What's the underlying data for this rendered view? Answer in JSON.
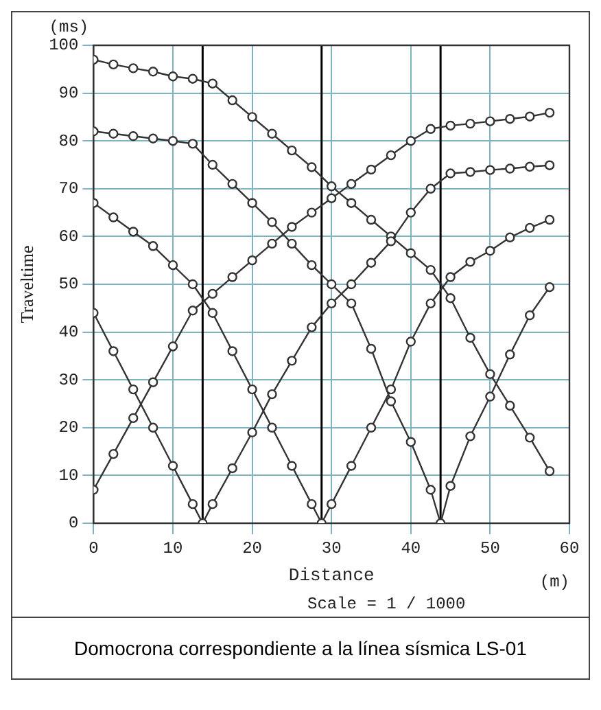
{
  "chart_data": {
    "type": "line",
    "xlabel": "Distance",
    "ylabel": "Traveltime",
    "annotations": [
      "(ms)",
      "(m)",
      "Scale = 1 / 1000",
      "Domocrona correspondiente a la línea sísmica LS-01"
    ],
    "xlim": [
      0,
      60
    ],
    "ylim": [
      0,
      100
    ],
    "xticks": [
      0,
      10,
      20,
      30,
      40,
      50,
      60
    ],
    "yticks": [
      0,
      10,
      20,
      30,
      40,
      50,
      60,
      70,
      80,
      90,
      100
    ],
    "grid": true,
    "legend": false,
    "marker": "circle",
    "line_style": "solid",
    "ref_lines": [
      {
        "axis": "x",
        "value": 13.75,
        "color": "#000000"
      },
      {
        "axis": "x",
        "value": 28.75,
        "color": "#000000"
      },
      {
        "axis": "x",
        "value": 43.75,
        "color": "#000000"
      }
    ],
    "series": [
      {
        "color": "#333333",
        "x": [
          0,
          2.5,
          5,
          7.5,
          10,
          12.5,
          15,
          17.5,
          20,
          22.5,
          25,
          27.5,
          30,
          32.5,
          35,
          37.5,
          40,
          42.5,
          45,
          47.5,
          50,
          52.5,
          55,
          57.5
        ],
        "values": [
          7,
          14.5,
          22,
          29.5,
          37,
          44.5,
          48,
          51.5,
          55,
          58.5,
          62,
          65,
          68,
          71,
          74,
          77,
          80,
          82.5,
          83.2,
          83.6,
          84.1,
          84.6,
          85.1,
          85.9
        ]
      },
      {
        "color": "#333333",
        "x": [
          0,
          2.5,
          5,
          7.5,
          10,
          12.5,
          13.75,
          15,
          17.5,
          20,
          22.5,
          25,
          27.5,
          30,
          32.5,
          35,
          37.5,
          40,
          42.5,
          45,
          47.5,
          50,
          52.5,
          55,
          57.5
        ],
        "values": [
          44,
          36,
          28,
          20,
          12,
          4,
          0,
          4,
          11.5,
          19,
          27,
          34,
          41,
          46,
          50,
          54.5,
          59,
          65,
          70,
          73.2,
          73.5,
          73.9,
          74.2,
          74.6,
          74.9
        ]
      },
      {
        "color": "#333333",
        "x": [
          0,
          2.5,
          5,
          7.5,
          10,
          12.5,
          15,
          17.5,
          20,
          22.5,
          25,
          27.5,
          28.75,
          30,
          32.5,
          35,
          37.5,
          40,
          42.5,
          45,
          47.5,
          50,
          52.5,
          55,
          57.5
        ],
        "values": [
          67,
          64,
          61,
          58,
          54,
          50,
          44,
          36,
          28,
          20,
          12,
          4,
          0,
          4,
          12,
          20,
          28,
          38,
          46,
          51.5,
          54.7,
          57,
          59.8,
          61.8,
          63.5
        ]
      },
      {
        "color": "#333333",
        "x": [
          0,
          2.5,
          5,
          7.5,
          10,
          12.5,
          15,
          17.5,
          20,
          22.5,
          25,
          27.5,
          30,
          32.5,
          35,
          37.5,
          40,
          42.5,
          43.75,
          45,
          47.5,
          50,
          52.5,
          55,
          57.5
        ],
        "values": [
          82,
          81.5,
          81,
          80.5,
          80,
          79.4,
          75,
          71,
          67,
          63,
          58.5,
          54,
          50,
          46,
          36.5,
          25.5,
          17,
          7,
          0,
          7.8,
          18.2,
          26.5,
          35.3,
          43.5,
          49.4
        ]
      },
      {
        "color": "#333333",
        "x": [
          0,
          2.5,
          5,
          7.5,
          10,
          12.5,
          15,
          17.5,
          20,
          22.5,
          25,
          27.5,
          30,
          32.5,
          35,
          37.5,
          40,
          42.5,
          45,
          47.5,
          50,
          52.5,
          55,
          57.5
        ],
        "values": [
          97,
          96,
          95.2,
          94.5,
          93.5,
          93,
          92,
          88.5,
          85,
          81.5,
          78,
          74.5,
          70.5,
          67,
          63.5,
          60,
          56.5,
          53,
          47.1,
          38.8,
          31.2,
          24.6,
          17.9,
          10.9
        ]
      }
    ]
  }
}
